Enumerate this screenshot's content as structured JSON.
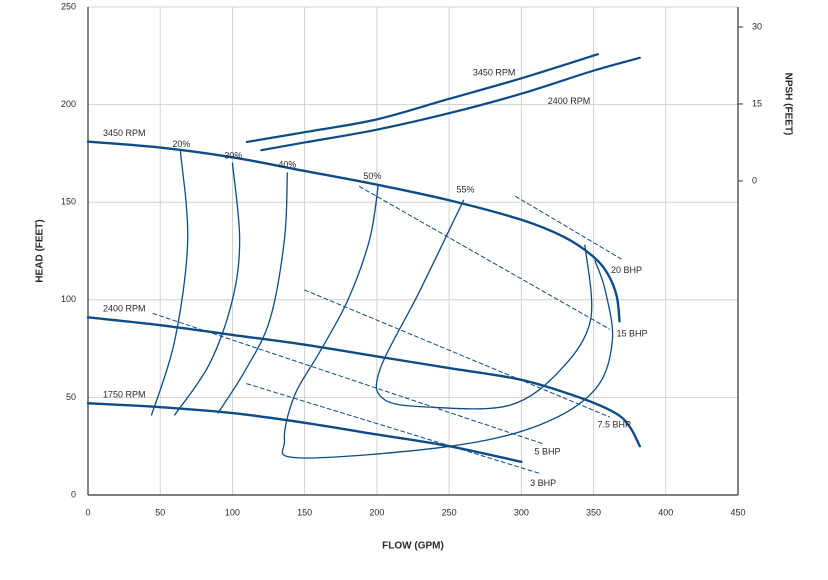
{
  "chart_data": {
    "type": "line",
    "x_label": "FLOW (GPM)",
    "y_label": "HEAD (FEET)",
    "y2_label": "NPSH (FEET)",
    "xlim": [
      0,
      450
    ],
    "xticks": [
      0,
      50,
      100,
      150,
      200,
      250,
      300,
      350,
      400,
      450
    ],
    "ylim": [
      0,
      250
    ],
    "yticks": [
      0,
      50,
      100,
      150,
      200,
      250
    ],
    "y2lim": [
      -61.2,
      33.9
    ],
    "y2ticks": [
      0,
      15,
      30
    ],
    "grid": true,
    "series": [
      {
        "name": "3450 RPM",
        "color": "#0d4c87",
        "line_width": 2.4,
        "x": [
          0,
          50,
          100,
          150,
          200,
          250,
          300,
          330,
          350,
          360,
          366,
          368
        ],
        "values": [
          181,
          178,
          173,
          166,
          159,
          151,
          141,
          132,
          122,
          113,
          102,
          89
        ]
      },
      {
        "name": "2400 RPM",
        "color": "#0d4c87",
        "line_width": 2.4,
        "x": [
          0,
          50,
          100,
          150,
          200,
          250,
          300,
          340,
          365,
          375,
          382
        ],
        "values": [
          91,
          87,
          82,
          77,
          71,
          65,
          59,
          50,
          42,
          35,
          25
        ]
      },
      {
        "name": "1750 RPM",
        "color": "#0d4c87",
        "line_width": 2.4,
        "x": [
          0,
          50,
          100,
          150,
          200,
          250,
          300
        ],
        "values": [
          47,
          45,
          42,
          37,
          31,
          25,
          17
        ]
      },
      {
        "name": "3450 RPM",
        "color": "#0d4c87",
        "line_width": 2.2,
        "axis": "y2",
        "x": [
          110,
          150,
          200,
          250,
          300,
          353
        ],
        "values": [
          7.6,
          9.5,
          12,
          16,
          20,
          24.7
        ]
      },
      {
        "name": "2400 RPM",
        "color": "#0d4c87",
        "line_width": 2.2,
        "axis": "y2",
        "x": [
          120,
          150,
          200,
          250,
          300,
          350,
          382
        ],
        "values": [
          6,
          7.5,
          10,
          13.2,
          17,
          21.5,
          24
        ]
      },
      {
        "name": "20%",
        "color": "#0d4c87",
        "line_width": 1.3,
        "x": [
          64,
          69,
          60,
          44
        ],
        "values": [
          176,
          130,
          79,
          41
        ]
      },
      {
        "name": "30%",
        "color": "#0d4c87",
        "line_width": 1.3,
        "x": [
          100,
          105,
          100,
          84,
          60
        ],
        "values": [
          170,
          131,
          100,
          67,
          41
        ]
      },
      {
        "name": "40%",
        "color": "#0d4c87",
        "line_width": 1.3,
        "x": [
          138,
          136,
          126,
          109,
          90
        ],
        "values": [
          165,
          131,
          90,
          64,
          42
        ]
      },
      {
        "name": "50%",
        "color": "#0d4c87",
        "line_width": 1.3,
        "x": [
          201,
          195,
          180,
          161,
          143,
          136,
          147,
          251,
          313,
          351,
          363,
          358,
          351
        ],
        "values": [
          159,
          131,
          100,
          74,
          51,
          28,
          19,
          25,
          36,
          54,
          79,
          105,
          120
        ]
      },
      {
        "name": "55%",
        "color": "#0d4c87",
        "line_width": 1.3,
        "x": [
          260,
          230,
          202,
          205,
          237,
          292,
          327,
          348,
          344
        ],
        "values": [
          151,
          105,
          64,
          49,
          45,
          46,
          64,
          90,
          128
        ]
      },
      {
        "name": "20 BHP",
        "color": "#0d4c87",
        "line_width": 1,
        "dashed": true,
        "x": [
          296,
          369
        ],
        "values": [
          153,
          121
        ]
      },
      {
        "name": "15 BHP",
        "color": "#0d4c87",
        "line_width": 1,
        "dashed": true,
        "x": [
          188,
          361
        ],
        "values": [
          158,
          85
        ]
      },
      {
        "name": "7.5 BHP",
        "color": "#0d4c87",
        "line_width": 1,
        "dashed": true,
        "x": [
          150,
          361
        ],
        "values": [
          105,
          40
        ]
      },
      {
        "name": "5 BHP",
        "color": "#0d4c87",
        "line_width": 1,
        "dashed": true,
        "x": [
          45,
          316
        ],
        "values": [
          93,
          26
        ]
      },
      {
        "name": "3 BHP",
        "color": "#0d4c87",
        "line_width": 1,
        "dashed": true,
        "x": [
          110,
          313
        ],
        "values": [
          57,
          11
        ]
      }
    ]
  }
}
